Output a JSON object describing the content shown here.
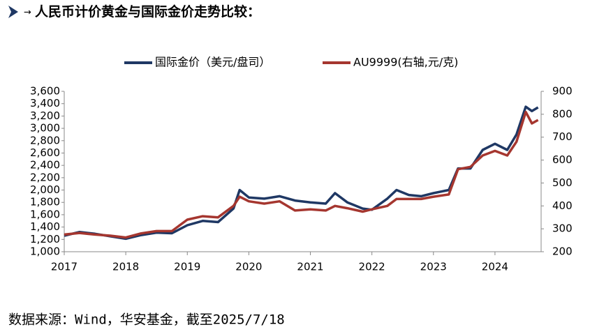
{
  "chart_data": {
    "type": "line",
    "heading": "人民币计价黄金与国际金价走势比较：",
    "source": "数据来源：Wind，华安基金，截至2025/7/18",
    "x": [
      2017.0,
      2017.25,
      2017.5,
      2017.75,
      2018.0,
      2018.25,
      2018.5,
      2018.75,
      2019.0,
      2019.25,
      2019.5,
      2019.75,
      2019.85,
      2020.0,
      2020.25,
      2020.5,
      2020.75,
      2021.0,
      2021.25,
      2021.4,
      2021.6,
      2021.85,
      2022.0,
      2022.25,
      2022.4,
      2022.6,
      2022.8,
      2023.0,
      2023.25,
      2023.4,
      2023.6,
      2023.8,
      2024.0,
      2024.2,
      2024.35,
      2024.5,
      2024.6,
      2024.7
    ],
    "series": [
      {
        "name": "国际金价（美元/盘司）",
        "color": "#1f3864",
        "values": [
          1260,
          1320,
          1290,
          1250,
          1210,
          1270,
          1310,
          1300,
          1430,
          1500,
          1480,
          1700,
          2000,
          1880,
          1860,
          1900,
          1830,
          1800,
          1780,
          1950,
          1800,
          1700,
          1680,
          1860,
          2000,
          1920,
          1900,
          1950,
          2000,
          2350,
          2350,
          2650,
          2750,
          2650,
          2900,
          3350,
          3280,
          3340
        ]
      },
      {
        "name": "AU9999(右轴,元/克)",
        "color": "#a5362f",
        "axis": "y2",
        "values": [
          275,
          282,
          275,
          270,
          262,
          280,
          290,
          290,
          340,
          355,
          350,
          400,
          440,
          420,
          410,
          420,
          380,
          385,
          380,
          400,
          390,
          375,
          385,
          400,
          430,
          430,
          430,
          440,
          450,
          560,
          570,
          620,
          640,
          620,
          680,
          810,
          760,
          775
        ]
      }
    ],
    "xlim": [
      2017,
      2024.75
    ],
    "xticks": [
      2017,
      2018,
      2019,
      2020,
      2021,
      2022,
      2023,
      2024
    ],
    "ylim": [
      1000,
      3600
    ],
    "yticks": [
      {
        "value": 1000,
        "label": "1,000"
      },
      {
        "value": 1200,
        "label": "1,200"
      },
      {
        "value": 1400,
        "label": "1,400"
      },
      {
        "value": 1600,
        "label": "1,600"
      },
      {
        "value": 1800,
        "label": "1,800"
      },
      {
        "value": 2000,
        "label": "2,000"
      },
      {
        "value": 2200,
        "label": "2,200"
      },
      {
        "value": 2400,
        "label": "2,400"
      },
      {
        "value": 2600,
        "label": "2,600"
      },
      {
        "value": 2800,
        "label": "2,800"
      },
      {
        "value": 3000,
        "label": "3,000"
      },
      {
        "value": 3200,
        "label": "3,200"
      },
      {
        "value": 3400,
        "label": "3,400"
      },
      {
        "value": 3600,
        "label": "3,600"
      }
    ],
    "y2lim": [
      200,
      900
    ],
    "y2ticks": [
      200,
      300,
      400,
      500,
      600,
      700,
      800,
      900
    ],
    "grid": false,
    "legend": "top"
  }
}
